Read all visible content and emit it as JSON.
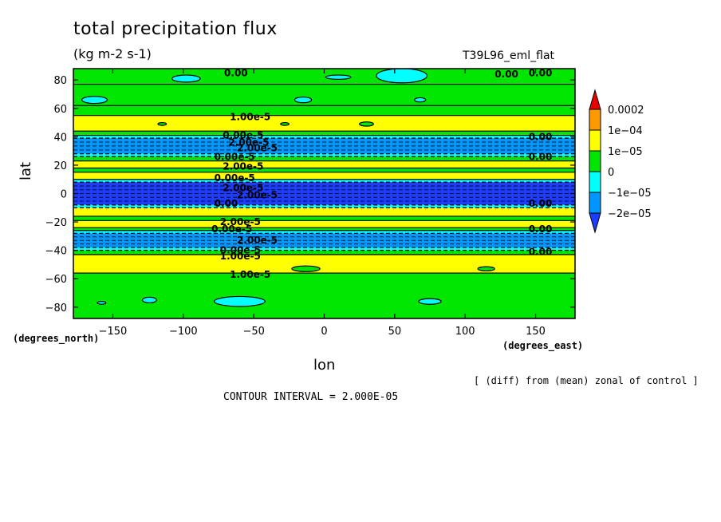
{
  "chart_data": {
    "type": "heatmap",
    "title": "total precipitation flux",
    "subtitle": "(kg m-2 s-1)",
    "dataset_label": "T39L96_eml_flat",
    "xlabel": "lon",
    "ylabel": "lat",
    "x_units": "(degrees_east)",
    "y_units": "(degrees_north)",
    "xlim": [
      -178,
      178
    ],
    "ylim": [
      -88,
      88
    ],
    "x_ticks": [
      -150,
      -100,
      -50,
      0,
      50,
      100,
      150
    ],
    "y_ticks": [
      -80,
      -60,
      -40,
      -20,
      0,
      20,
      40,
      60,
      80
    ],
    "x_tick_labels": [
      "-150",
      "-100",
      "-50",
      "0",
      "50",
      "100",
      "150"
    ],
    "y_tick_labels": [
      "-80",
      "-60",
      "-40",
      "-20",
      "0",
      "20",
      "40",
      "60",
      "80"
    ],
    "note": "[ (diff) from (mean) zonal of control ]",
    "contour_interval": "CONTOUR INTERVAL = 2.000E-05",
    "colorbar": {
      "labels": [
        "0.0002",
        "1e-04",
        "1e-05",
        "0",
        "-1e-05",
        "-2e-05"
      ],
      "colors": [
        "#e60000",
        "#ff9900",
        "#ffff00",
        "#00e600",
        "#00ffff",
        "#0096ff",
        "#1e3cff"
      ]
    },
    "bands": [
      {
        "lat_min": 77,
        "lat_max": 88,
        "class": "zero"
      },
      {
        "lat_min": 62,
        "lat_max": 77,
        "class": "zero"
      },
      {
        "lat_min": 55,
        "lat_max": 62,
        "class": "zero"
      },
      {
        "lat_min": 44,
        "lat_max": 55,
        "class": "pos_small"
      },
      {
        "lat_min": 41,
        "lat_max": 44,
        "class": "zero"
      },
      {
        "lat_min": 39,
        "lat_max": 41,
        "class": "neg_small"
      },
      {
        "lat_min": 28,
        "lat_max": 39,
        "class": "neg_mid"
      },
      {
        "lat_min": 26,
        "lat_max": 28,
        "class": "neg_small"
      },
      {
        "lat_min": 23,
        "lat_max": 26,
        "class": "zero"
      },
      {
        "lat_min": 18,
        "lat_max": 23,
        "class": "pos_small"
      },
      {
        "lat_min": 15,
        "lat_max": 18,
        "class": "zero"
      },
      {
        "lat_min": 10,
        "lat_max": 15,
        "class": "pos_small"
      },
      {
        "lat_min": 8,
        "lat_max": 10,
        "class": "neg_small"
      },
      {
        "lat_min": -8,
        "lat_max": 8,
        "class": "neg_deep"
      },
      {
        "lat_min": -10,
        "lat_max": -8,
        "class": "neg_small"
      },
      {
        "lat_min": -16,
        "lat_max": -10,
        "class": "pos_small"
      },
      {
        "lat_min": -19,
        "lat_max": -16,
        "class": "zero"
      },
      {
        "lat_min": -24,
        "lat_max": -19,
        "class": "pos_small"
      },
      {
        "lat_min": -26,
        "lat_max": -24,
        "class": "zero"
      },
      {
        "lat_min": -28,
        "lat_max": -26,
        "class": "neg_small"
      },
      {
        "lat_min": -38,
        "lat_max": -28,
        "class": "neg_mid"
      },
      {
        "lat_min": -40,
        "lat_max": -38,
        "class": "neg_small"
      },
      {
        "lat_min": -43,
        "lat_max": -40,
        "class": "zero"
      },
      {
        "lat_min": -56,
        "lat_max": -43,
        "class": "pos_small"
      },
      {
        "lat_min": -88,
        "lat_max": -56,
        "class": "zero"
      }
    ],
    "blobs": [
      {
        "lon": 55,
        "lat": 83,
        "rlon": 18,
        "rlat": 5,
        "class": "neg_small"
      },
      {
        "lon": -98,
        "lat": 81,
        "rlon": 10,
        "rlat": 2.5,
        "class": "neg_small"
      },
      {
        "lon": 10,
        "lat": 82,
        "rlon": 9,
        "rlat": 1.5,
        "class": "neg_small"
      },
      {
        "lon": -163,
        "lat": 66,
        "rlon": 9,
        "rlat": 2.5,
        "class": "neg_small"
      },
      {
        "lon": -15,
        "lat": 66,
        "rlon": 6,
        "rlat": 2,
        "class": "neg_small"
      },
      {
        "lon": 68,
        "lat": 66,
        "rlon": 4,
        "rlat": 1.5,
        "class": "neg_small"
      },
      {
        "lon": 30,
        "lat": 49,
        "rlon": 5,
        "rlat": 1.5,
        "class": "zero"
      },
      {
        "lon": -115,
        "lat": 49,
        "rlon": 3,
        "rlat": 1,
        "class": "zero"
      },
      {
        "lon": -28,
        "lat": 49,
        "rlon": 3,
        "rlat": 1,
        "class": "zero"
      },
      {
        "lon": -13,
        "lat": -53,
        "rlon": 10,
        "rlat": 2,
        "class": "zero"
      },
      {
        "lon": 115,
        "lat": -53,
        "rlon": 6,
        "rlat": 1.5,
        "class": "zero"
      },
      {
        "lon": -60,
        "lat": -76,
        "rlon": 18,
        "rlat": 3.5,
        "class": "neg_small"
      },
      {
        "lon": -124,
        "lat": -75,
        "rlon": 5,
        "rlat": 2,
        "class": "neg_small"
      },
      {
        "lon": 75,
        "lat": -76,
        "rlon": 8,
        "rlat": 2,
        "class": "neg_small"
      },
      {
        "lon": -158,
        "lat": -77,
        "rlon": 3,
        "rlat": 1,
        "class": "neg_small"
      }
    ],
    "contour_labels": [
      {
        "text": "0.00",
        "lon": -71,
        "lat": 85
      },
      {
        "text": "0.00",
        "lon": 121,
        "lat": 84
      },
      {
        "text": "0.00",
        "lon": 145,
        "lat": 85
      },
      {
        "text": "1.00e-5",
        "lon": -67,
        "lat": 54
      },
      {
        "text": "0.00e-5",
        "lon": -72,
        "lat": 41
      },
      {
        "text": "0.00",
        "lon": 145,
        "lat": 40
      },
      {
        "text": "2.00e-5",
        "lon": -68,
        "lat": 36
      },
      {
        "text": "2.00e-5",
        "lon": -62,
        "lat": 32
      },
      {
        "text": "0.00e-5",
        "lon": -78,
        "lat": 26
      },
      {
        "text": "0.00",
        "lon": 145,
        "lat": 26
      },
      {
        "text": "2.00e-5",
        "lon": -72,
        "lat": 19
      },
      {
        "text": "0.00e-5",
        "lon": -78,
        "lat": 11
      },
      {
        "text": "2.00e-5",
        "lon": -72,
        "lat": 4
      },
      {
        "text": "2.00e-5",
        "lon": -62,
        "lat": -1
      },
      {
        "text": "0.00",
        "lon": -78,
        "lat": -7
      },
      {
        "text": "0.00",
        "lon": 145,
        "lat": -7
      },
      {
        "text": "2.00e-5",
        "lon": -74,
        "lat": -20
      },
      {
        "text": "0.00e-5",
        "lon": -80,
        "lat": -25
      },
      {
        "text": "0.00",
        "lon": 145,
        "lat": -25
      },
      {
        "text": "2.00e-5",
        "lon": -62,
        "lat": -33
      },
      {
        "text": "0.00e-5",
        "lon": -74,
        "lat": -40
      },
      {
        "text": "1.00e-5",
        "lon": -74,
        "lat": -44
      },
      {
        "text": "0.00",
        "lon": 145,
        "lat": -41
      },
      {
        "text": "1.00e-5",
        "lon": -67,
        "lat": -57
      }
    ]
  },
  "legend_colors": {
    "pos_large": "#e60000",
    "pos_mid": "#ff9900",
    "pos_small": "#ffff00",
    "zero": "#00e600",
    "neg_small": "#00ffff",
    "neg_mid": "#0096ff",
    "neg_deep": "#1e3cff"
  }
}
